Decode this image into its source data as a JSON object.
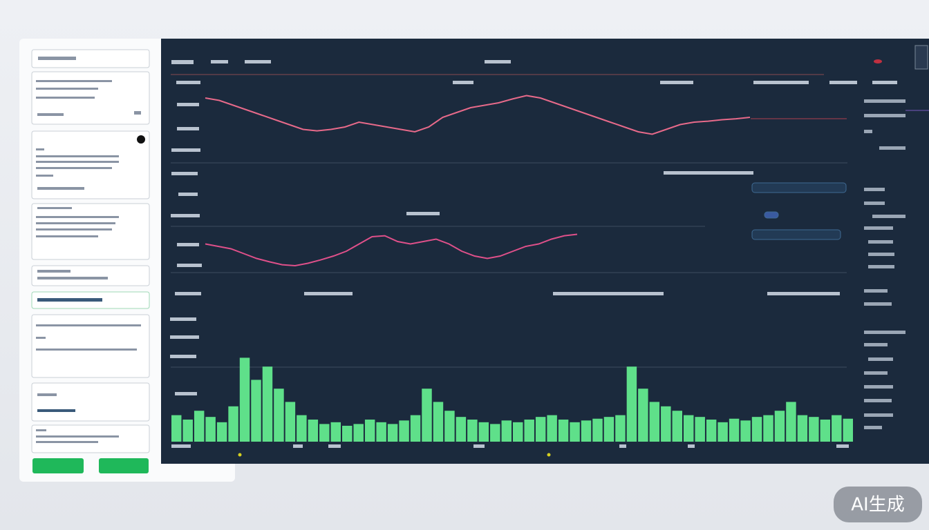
{
  "watermark": "AI生成",
  "chart_data": [
    {
      "type": "line",
      "color": "#e86a8a",
      "ylim": [
        0,
        100
      ],
      "values": [
        90,
        85,
        75,
        65,
        55,
        45,
        35,
        25,
        22,
        25,
        30,
        40,
        35,
        30,
        25,
        20,
        30,
        50,
        60,
        70,
        75,
        80,
        88,
        95,
        90,
        80,
        70,
        60,
        50,
        40,
        30,
        20,
        15,
        25,
        35,
        40,
        42,
        45,
        47,
        50
      ]
    },
    {
      "type": "line",
      "color": "#e0508a",
      "ylim": [
        0,
        100
      ],
      "values": [
        55,
        50,
        45,
        35,
        25,
        18,
        12,
        10,
        15,
        22,
        30,
        40,
        55,
        70,
        72,
        60,
        55,
        60,
        65,
        55,
        40,
        30,
        25,
        30,
        40,
        50,
        55,
        65,
        72,
        75
      ]
    },
    {
      "type": "bar",
      "color": "#5fe08a",
      "ylim": [
        0,
        100
      ],
      "values": [
        30,
        25,
        35,
        28,
        22,
        40,
        95,
        70,
        85,
        60,
        45,
        30,
        25,
        20,
        22,
        18,
        20,
        25,
        22,
        20,
        24,
        30,
        60,
        45,
        35,
        28,
        25,
        22,
        20,
        24,
        22,
        25,
        28,
        30,
        25,
        22,
        24,
        26,
        28,
        30,
        85,
        60,
        45,
        40,
        35,
        30,
        28,
        25,
        22,
        26,
        24,
        28,
        30,
        35,
        45,
        30,
        28,
        25,
        30,
        26
      ]
    }
  ]
}
